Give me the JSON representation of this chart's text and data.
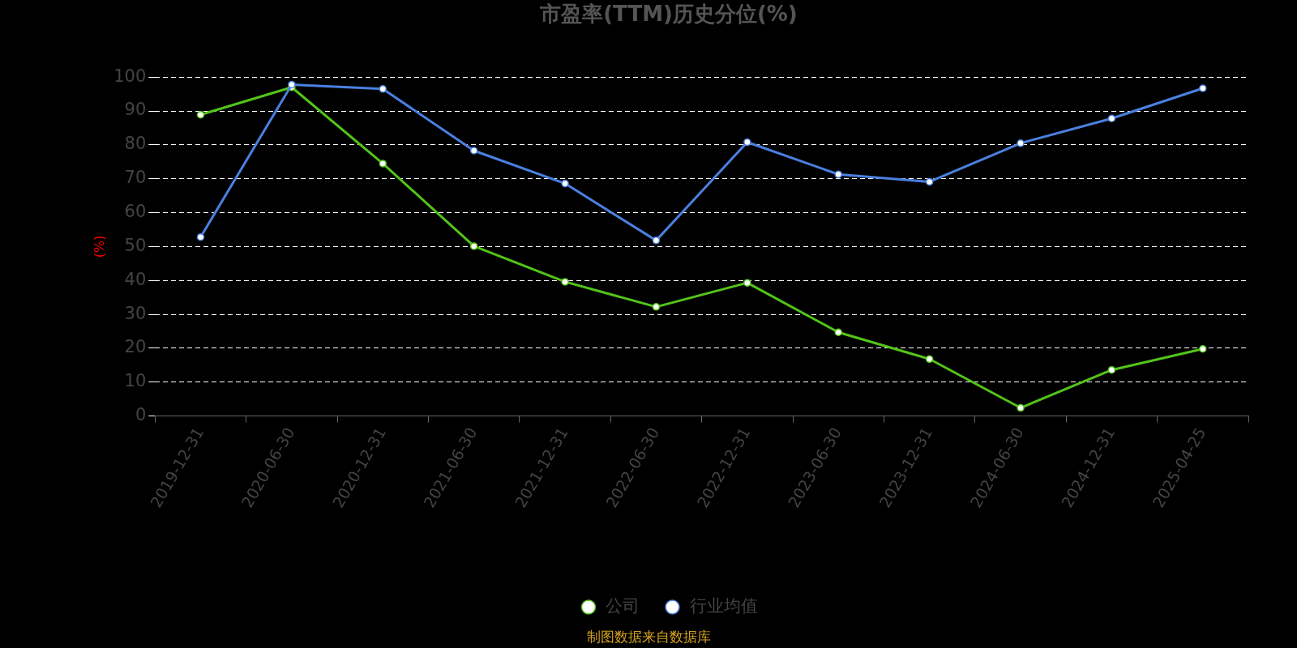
{
  "chart_data": {
    "type": "line",
    "title": "市盈率(TTM)历史分位(%)",
    "ylabel": "(%)",
    "categories": [
      "2019-12-31",
      "2020-06-30",
      "2020-12-31",
      "2021-06-30",
      "2021-12-31",
      "2022-06-30",
      "2022-12-31",
      "2023-06-30",
      "2023-12-31",
      "2024-06-30",
      "2024-12-31",
      "2025-04-25"
    ],
    "series": [
      {
        "name": "公司",
        "color": "#52c41a",
        "values": [
          88.9,
          97.0,
          74.5,
          50.1,
          39.6,
          32.2,
          39.3,
          24.7,
          16.8,
          2.4,
          13.6,
          19.8
        ]
      },
      {
        "name": "行业均值",
        "color": "#4a80e0",
        "values": [
          52.8,
          97.8,
          96.5,
          78.3,
          68.6,
          51.8,
          80.8,
          71.3,
          69.1,
          80.5,
          87.8,
          96.7
        ]
      }
    ],
    "ylim": [
      0,
      100
    ],
    "yticks": [
      0,
      10,
      20,
      30,
      40,
      50,
      60,
      70,
      80,
      90,
      100
    ],
    "grid": "y",
    "legend": "bottom",
    "marker": "circle",
    "line_style": "solid",
    "annotations": [
      "制图数据来自数据库"
    ]
  }
}
